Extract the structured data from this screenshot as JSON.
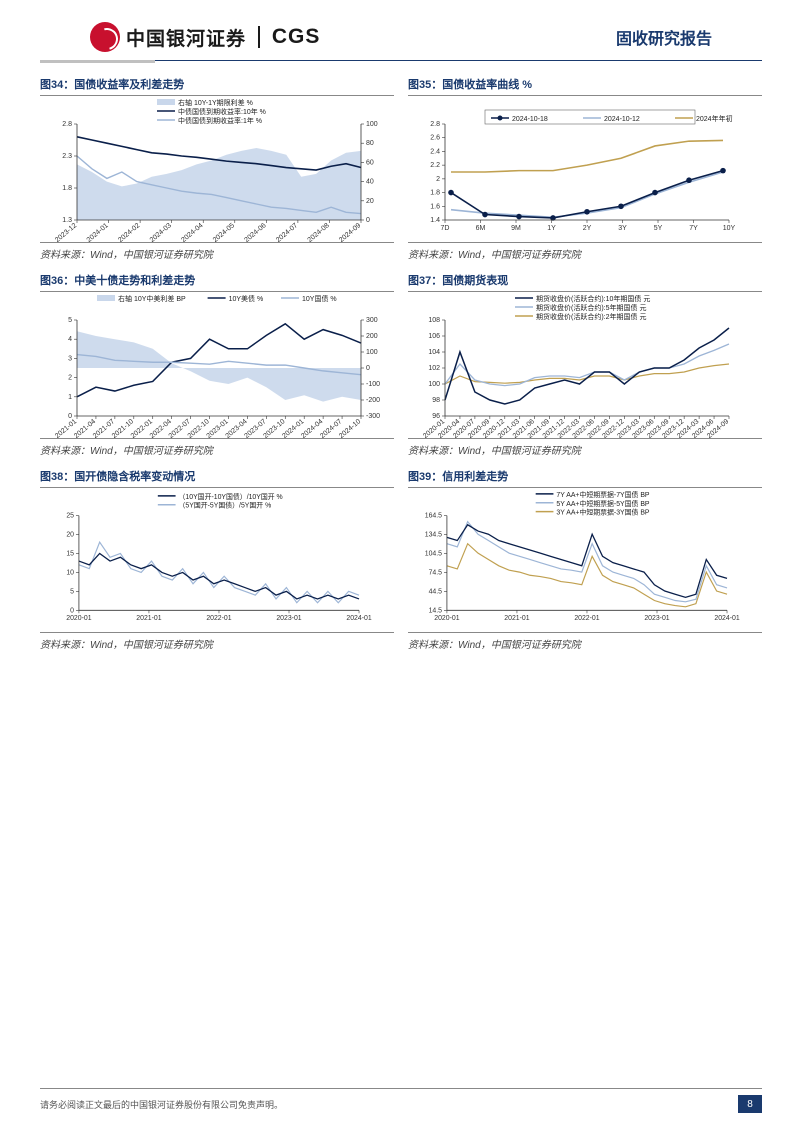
{
  "header": {
    "logo_cn": "中国银河证券",
    "logo_en": "CGS",
    "report_type": "固收研究报告"
  },
  "source_text": "资料来源：Wind，中国银河证券研究院",
  "disclaimer": "请务必阅读正文最后的中国银河证券股份有限公司免责声明。",
  "page_number": "8",
  "colors": {
    "navy": "#1a3a6e",
    "dark_line": "#0a1f4a",
    "light_line": "#9db5d6",
    "pale_fill": "#c9d7eb",
    "gold": "#c0a050",
    "accent_blue": "#2a5aa8"
  },
  "charts": {
    "c34": {
      "title": "图34：国债收益率及利差走势",
      "type": "line_area_dual_axis",
      "legend": [
        {
          "label": "右轴 10Y-1Y期限利差 %",
          "type": "area",
          "color": "#c9d7eb"
        },
        {
          "label": "中债国债到期收益率:10年 %",
          "type": "line",
          "color": "#0a1f4a"
        },
        {
          "label": "中债国债到期收益率:1年 %",
          "type": "line",
          "color": "#9db5d6"
        }
      ],
      "x_labels": [
        "2023-12",
        "2024-01",
        "2024-02",
        "2024-03",
        "2024-04",
        "2024-05",
        "2024-06",
        "2024-07",
        "2024-08",
        "2024-09"
      ],
      "y_left": {
        "min": 1.3,
        "max": 2.8,
        "ticks": [
          1.3,
          1.8,
          2.3,
          2.8
        ]
      },
      "y_right": {
        "min": 0,
        "max": 100,
        "ticks": [
          0,
          20,
          40,
          60,
          80,
          100
        ]
      },
      "series_area": [
        58,
        50,
        40,
        35,
        38,
        45,
        48,
        52,
        58,
        62,
        68,
        72,
        75,
        72,
        68,
        45,
        48,
        62,
        70,
        72
      ],
      "series_10y": [
        2.6,
        2.55,
        2.5,
        2.45,
        2.4,
        2.35,
        2.33,
        2.3,
        2.28,
        2.25,
        2.22,
        2.2,
        2.18,
        2.15,
        2.12,
        2.1,
        2.08,
        2.14,
        2.18,
        2.12
      ],
      "series_1y": [
        2.3,
        2.1,
        1.95,
        2.05,
        1.9,
        1.85,
        1.8,
        1.75,
        1.72,
        1.7,
        1.65,
        1.6,
        1.55,
        1.5,
        1.48,
        1.45,
        1.42,
        1.5,
        1.42,
        1.4
      ]
    },
    "c35": {
      "title": "图35：国债收益率曲线 %",
      "type": "line_markers",
      "legend": [
        {
          "label": "2024-10-18",
          "type": "line_marker",
          "color": "#0a1f4a"
        },
        {
          "label": "2024-10-12",
          "type": "line",
          "color": "#9db5d6"
        },
        {
          "label": "2024年年初",
          "type": "line",
          "color": "#c0a050"
        }
      ],
      "x_labels": [
        "7D",
        "6M",
        "9M",
        "1Y",
        "2Y",
        "3Y",
        "5Y",
        "7Y",
        "10Y"
      ],
      "y": {
        "min": 1.4,
        "max": 2.8,
        "ticks": [
          1.4,
          1.6,
          1.8,
          2.0,
          2.2,
          2.4,
          2.6,
          2.8
        ]
      },
      "series_a": [
        1.8,
        1.48,
        1.45,
        1.43,
        1.52,
        1.6,
        1.8,
        1.98,
        2.12
      ],
      "series_b": [
        1.55,
        1.5,
        1.47,
        1.44,
        1.5,
        1.58,
        1.78,
        1.95,
        2.1
      ],
      "series_c": [
        2.1,
        2.1,
        2.12,
        2.12,
        2.2,
        2.3,
        2.48,
        2.55,
        2.56
      ]
    },
    "c36": {
      "title": "图36：中美十债走势和利差走势",
      "type": "line_area_dual_axis",
      "legend": [
        {
          "label": "右轴 10Y中美利差 BP",
          "type": "area",
          "color": "#c9d7eb"
        },
        {
          "label": "10Y美债 %",
          "type": "line",
          "color": "#0a1f4a"
        },
        {
          "label": "10Y国债 %",
          "type": "line",
          "color": "#9db5d6"
        }
      ],
      "x_labels": [
        "2021-01",
        "2021-04",
        "2021-07",
        "2021-10",
        "2022-01",
        "2022-04",
        "2022-07",
        "2022-10",
        "2023-01",
        "2023-04",
        "2023-07",
        "2023-10",
        "2024-01",
        "2024-04",
        "2024-07",
        "2024-10"
      ],
      "y_left": {
        "min": 0.0,
        "max": 5.0,
        "ticks": [
          0.0,
          1.0,
          2.0,
          3.0,
          4.0,
          5.0
        ]
      },
      "y_right": {
        "min": -300,
        "max": 300,
        "ticks": [
          -300,
          -200,
          -100,
          0,
          100,
          200,
          300
        ]
      },
      "series_area": [
        230,
        200,
        180,
        160,
        120,
        30,
        -20,
        -80,
        -100,
        -60,
        -120,
        -200,
        -170,
        -210,
        -180,
        -200
      ],
      "series_us": [
        1.0,
        1.5,
        1.3,
        1.6,
        1.8,
        2.8,
        3.0,
        4.0,
        3.5,
        3.5,
        4.2,
        4.8,
        4.0,
        4.5,
        4.2,
        3.8
      ],
      "series_cn": [
        3.2,
        3.1,
        2.9,
        2.85,
        2.8,
        2.8,
        2.75,
        2.7,
        2.85,
        2.75,
        2.65,
        2.65,
        2.5,
        2.35,
        2.25,
        2.15
      ]
    },
    "c37": {
      "title": "图37：国债期货表现",
      "type": "line",
      "legend": [
        {
          "label": "期货收盘价(活跃合约):10年期国债 元",
          "color": "#0a1f4a"
        },
        {
          "label": "期货收盘价(活跃合约):5年期国债 元",
          "color": "#9db5d6"
        },
        {
          "label": "期货收盘价(活跃合约):2年期国债 元",
          "color": "#c0a050"
        }
      ],
      "x_labels": [
        "2020-01",
        "2020-04",
        "2020-07",
        "2020-09",
        "2020-12",
        "2021-03",
        "2021-06",
        "2021-09",
        "2021-12",
        "2022-03",
        "2022-06",
        "2022-09",
        "2022-12",
        "2023-03",
        "2023-06",
        "2023-09",
        "2023-12",
        "2024-03",
        "2024-06",
        "2024-09"
      ],
      "y": {
        "min": 96,
        "max": 108,
        "ticks": [
          96,
          98,
          100,
          102,
          104,
          106,
          108
        ]
      },
      "series_10y": [
        98,
        104,
        99,
        98,
        97.5,
        98,
        99.5,
        100,
        100.5,
        100,
        101.5,
        101.5,
        100,
        101.5,
        102,
        102,
        103,
        104.5,
        105.5,
        107
      ],
      "series_5y": [
        100,
        102.5,
        100.5,
        100,
        99.8,
        100,
        100.8,
        101,
        101,
        100.8,
        101.5,
        101.5,
        100.5,
        101.5,
        102,
        102,
        102.5,
        103.5,
        104.2,
        105
      ],
      "series_2y": [
        100,
        101,
        100.3,
        100.2,
        100.1,
        100.2,
        100.5,
        100.7,
        100.7,
        100.5,
        101,
        101,
        100.5,
        101,
        101.3,
        101.3,
        101.5,
        102,
        102.3,
        102.5
      ]
    },
    "c38": {
      "title": "图38：国开债隐含税率变动情况",
      "type": "line",
      "legend": [
        {
          "label": "（10Y国开-10Y国债）/10Y国开 %",
          "color": "#0a1f4a"
        },
        {
          "label": "（5Y国开-5Y国债）/5Y国开 %",
          "color": "#9db5d6"
        }
      ],
      "x_labels": [
        "2020-01",
        "2021-01",
        "2022-01",
        "2023-01",
        "2024-01"
      ],
      "y": {
        "min": 0,
        "max": 25,
        "ticks": [
          0,
          5,
          10,
          15,
          20,
          25
        ]
      },
      "series_10": [
        13,
        12,
        15,
        13,
        14,
        12,
        11,
        12,
        10,
        9,
        10,
        8,
        9,
        7,
        8,
        7,
        6,
        5,
        6,
        4,
        5,
        3,
        4,
        3,
        4,
        3,
        4,
        3
      ],
      "series_5": [
        12,
        11,
        18,
        14,
        15,
        11,
        10,
        13,
        9,
        8,
        11,
        7,
        10,
        6,
        9,
        6,
        5,
        4,
        7,
        3,
        6,
        2,
        5,
        2,
        5,
        2,
        5,
        4
      ]
    },
    "c39": {
      "title": "图39：信用利差走势",
      "type": "line",
      "legend": [
        {
          "label": "7Y AA+中短期票据-7Y国债 BP",
          "color": "#0a1f4a"
        },
        {
          "label": "5Y AA+中短期票据-5Y国债 BP",
          "color": "#9db5d6"
        },
        {
          "label": "3Y AA+中短期票据-3Y国债 BP",
          "color": "#c0a050"
        }
      ],
      "x_labels": [
        "2020-01",
        "2021-01",
        "2022-01",
        "2023-01",
        "2024-01"
      ],
      "y": {
        "min": 14.5,
        "max": 164.5,
        "ticks": [
          14.5,
          44.5,
          74.5,
          104.5,
          134.5,
          164.5
        ]
      },
      "series_7y": [
        130,
        125,
        150,
        140,
        135,
        125,
        120,
        115,
        110,
        105,
        100,
        95,
        90,
        85,
        135,
        100,
        90,
        85,
        80,
        75,
        55,
        45,
        40,
        35,
        40,
        95,
        70,
        65
      ],
      "series_5y": [
        120,
        115,
        155,
        135,
        125,
        115,
        105,
        100,
        95,
        90,
        85,
        80,
        78,
        75,
        120,
        85,
        75,
        70,
        65,
        55,
        40,
        35,
        30,
        28,
        32,
        85,
        55,
        50
      ],
      "series_3y": [
        85,
        80,
        120,
        105,
        95,
        85,
        78,
        75,
        70,
        68,
        65,
        60,
        58,
        55,
        100,
        70,
        60,
        55,
        50,
        40,
        30,
        25,
        22,
        20,
        25,
        75,
        45,
        40
      ]
    }
  }
}
